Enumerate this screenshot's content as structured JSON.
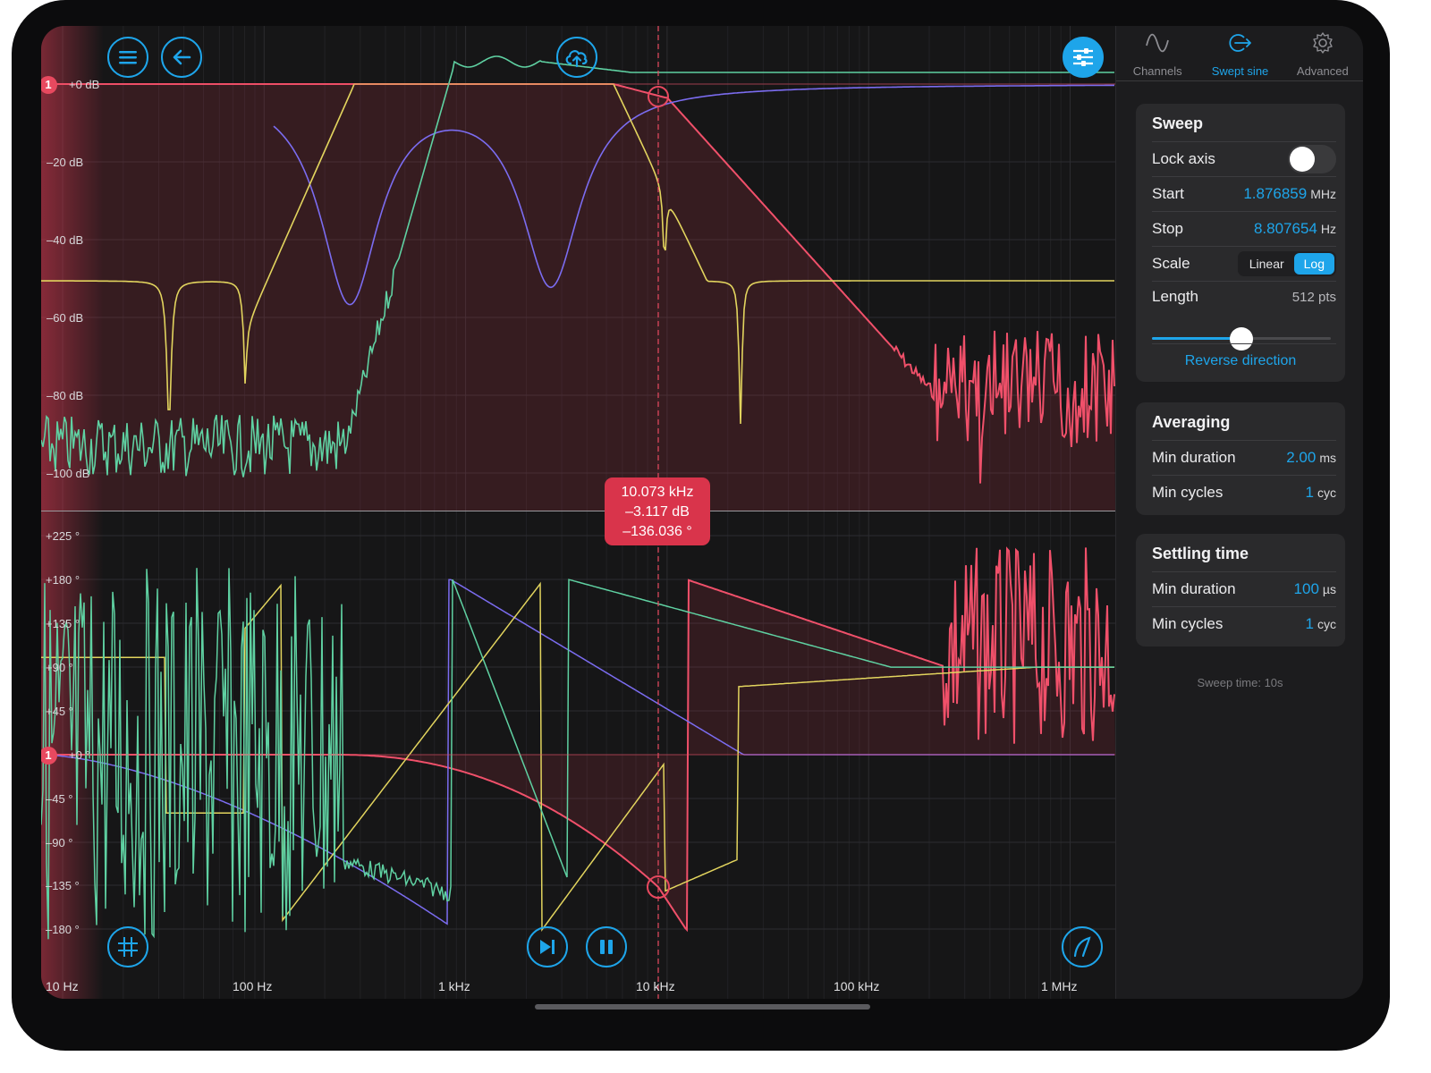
{
  "axes": {
    "magnitude_ticks": [
      "+0 dB",
      "–20 dB",
      "–40 dB",
      "–60 dB",
      "–80 dB",
      "–100 dB"
    ],
    "phase_ticks": [
      "+225 °",
      "+180 °",
      "+135 °",
      "+90 °",
      "+45 °",
      "+0 °",
      "–45 °",
      "–90 °",
      "–135 °",
      "–180 °"
    ],
    "frequency_ticks": [
      "10 Hz",
      "100 Hz",
      "1 kHz",
      "10 kHz",
      "100 kHz",
      "1 MHz"
    ]
  },
  "marker": {
    "id": "1",
    "frequency": "10.073 kHz",
    "magnitude": "–3.117 dB",
    "phase": "–136.036 °"
  },
  "colors": {
    "accent": "#1ea5ea",
    "marker": "#e8495f",
    "trace_red": "#f0506a",
    "trace_green": "#5fd1a2",
    "trace_yellow": "#e2d45e",
    "trace_purple": "#7b6cf0"
  },
  "toolbar": {
    "menu_icon": "hamburger-icon",
    "back_icon": "arrow-left-icon",
    "upload_icon": "cloud-upload-icon",
    "settings_icon": "sliders-icon",
    "grid_icon": "grid-icon",
    "step_icon": "skip-forward-icon",
    "pause_icon": "pause-icon",
    "curve_icon": "curve-icon"
  },
  "tabs": [
    {
      "label": "Channels",
      "icon": "sine-wave-icon",
      "active": false
    },
    {
      "label": "Swept sine",
      "icon": "sweep-icon",
      "active": true
    },
    {
      "label": "Advanced",
      "icon": "gear-icon",
      "active": false
    }
  ],
  "sweep": {
    "title": "Sweep",
    "lock_axis_label": "Lock axis",
    "lock_axis_on": false,
    "start_label": "Start",
    "start_value": "1.876859",
    "start_unit": "MHz",
    "stop_label": "Stop",
    "stop_value": "8.807654",
    "stop_unit": "Hz",
    "scale_label": "Scale",
    "scale_options": [
      "Linear",
      "Log"
    ],
    "scale_selected": "Log",
    "length_label": "Length",
    "length_value": "512 pts",
    "length_slider_fraction": 0.5,
    "reverse_label": "Reverse direction"
  },
  "averaging": {
    "title": "Averaging",
    "min_duration_label": "Min duration",
    "min_duration_value": "2.00",
    "min_duration_unit": "ms",
    "min_cycles_label": "Min cycles",
    "min_cycles_value": "1",
    "min_cycles_unit": "cyc"
  },
  "settling": {
    "title": "Settling time",
    "min_duration_label": "Min duration",
    "min_duration_value": "100",
    "min_duration_unit": "µs",
    "min_cycles_label": "Min cycles",
    "min_cycles_value": "1",
    "min_cycles_unit": "cyc"
  },
  "sweep_time": "Sweep time: 10s"
}
